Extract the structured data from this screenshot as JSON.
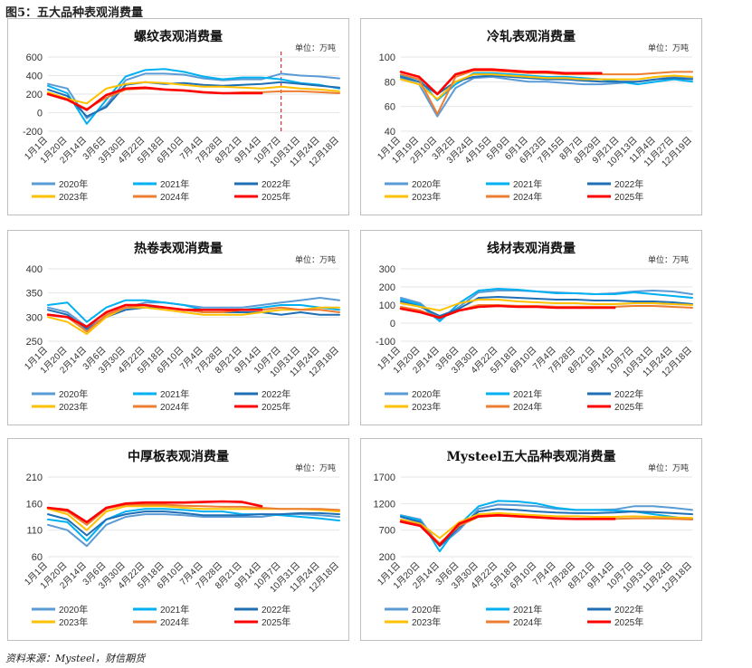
{
  "figure": {
    "title": "图5：五大品种表观消费量",
    "source": "资料来源：Mysteel，财信期货"
  },
  "legend_years": [
    "2020年",
    "2021年",
    "2022年",
    "2023年",
    "2024年",
    "2025年"
  ],
  "series_colors": {
    "2020年": "#5b9bd5",
    "2021年": "#00b0f0",
    "2022年": "#1f6fb5",
    "2023年": "#ffc000",
    "2024年": "#ed7d31",
    "2025年": "#ff0000"
  },
  "chart_data": [
    {
      "id": "rebar",
      "type": "line",
      "title": "螺纹表观消费量",
      "unit": "单位：万吨",
      "ylim": [
        -200,
        600
      ],
      "yticks": [
        "-200",
        "0",
        "200",
        "400",
        "600"
      ],
      "categories": [
        "1月1日",
        "1月20日",
        "2月14日",
        "3月6日",
        "3月30日",
        "4月22日",
        "5月18日",
        "6月10日",
        "7月4日",
        "7月28日",
        "8月21日",
        "9月14日",
        "10月7日",
        "10月31日",
        "11月24日",
        "12月18日"
      ],
      "marker_at": "10月7日",
      "series": [
        {
          "name": "2020年",
          "values": [
            310,
            260,
            -60,
            80,
            350,
            420,
            420,
            410,
            370,
            350,
            360,
            360,
            420,
            400,
            390,
            370
          ]
        },
        {
          "name": "2021年",
          "values": [
            290,
            210,
            -120,
            140,
            390,
            460,
            470,
            440,
            390,
            360,
            380,
            380,
            360,
            320,
            300,
            260
          ]
        },
        {
          "name": "2022年",
          "values": [
            250,
            180,
            -40,
            60,
            300,
            330,
            310,
            320,
            300,
            290,
            300,
            310,
            330,
            310,
            290,
            270
          ]
        },
        {
          "name": "2023年",
          "values": [
            220,
            150,
            100,
            260,
            310,
            330,
            320,
            300,
            280,
            280,
            270,
            260,
            280,
            260,
            250,
            230
          ]
        },
        {
          "name": "2024年",
          "values": [
            200,
            140,
            40,
            160,
            250,
            260,
            250,
            240,
            220,
            210,
            220,
            220,
            230,
            230,
            220,
            210
          ]
        },
        {
          "name": "2025年",
          "values": [
            200,
            140,
            30,
            190,
            260,
            270,
            250,
            240,
            220,
            210,
            210,
            210,
            null,
            null,
            null,
            null
          ]
        }
      ]
    },
    {
      "id": "wire",
      "type": "line",
      "title": "线材表观消费量",
      "unit": "单位：万吨",
      "ylim": [
        -100,
        300
      ],
      "yticks": [
        "-100",
        "0",
        "100",
        "200",
        "300"
      ],
      "categories": [
        "1月1日",
        "1月20日",
        "2月14日",
        "3月6日",
        "3月30日",
        "4月22日",
        "5月18日",
        "6月10日",
        "7月4日",
        "7月28日",
        "8月21日",
        "9月14日",
        "10月7日",
        "10月31日",
        "11月24日",
        "12月18日"
      ],
      "series": [
        {
          "name": "2020年",
          "values": [
            140,
            110,
            20,
            90,
            170,
            180,
            180,
            175,
            170,
            165,
            160,
            165,
            175,
            180,
            175,
            160
          ]
        },
        {
          "name": "2021年",
          "values": [
            130,
            100,
            10,
            110,
            180,
            190,
            185,
            175,
            165,
            165,
            160,
            160,
            170,
            160,
            150,
            140
          ]
        },
        {
          "name": "2022年",
          "values": [
            120,
            90,
            40,
            80,
            140,
            145,
            140,
            135,
            130,
            130,
            125,
            125,
            120,
            120,
            115,
            105
          ]
        },
        {
          "name": "2023年",
          "values": [
            110,
            90,
            70,
            110,
            130,
            130,
            120,
            115,
            110,
            110,
            105,
            105,
            110,
            110,
            105,
            100
          ]
        },
        {
          "name": "2024年",
          "values": [
            90,
            70,
            30,
            70,
            100,
            100,
            95,
            95,
            90,
            90,
            90,
            90,
            95,
            95,
            90,
            85
          ]
        },
        {
          "name": "2025年",
          "values": [
            80,
            60,
            30,
            70,
            90,
            95,
            90,
            90,
            85,
            85,
            85,
            85,
            null,
            null,
            null,
            null
          ]
        }
      ]
    },
    {
      "id": "coldroll",
      "type": "line",
      "title": "冷轧表观消费量",
      "unit": "单位：万吨",
      "ylim": [
        40,
        100
      ],
      "yticks": [
        "40",
        "60",
        "80",
        "100"
      ],
      "categories": [
        "1月1日",
        "1月19日",
        "2月10日",
        "3月2日",
        "3月24日",
        "4月15日",
        "5月9日",
        "6月1日",
        "6月23日",
        "7月15日",
        "8月7日",
        "8月29日",
        "9月21日",
        "10月13日",
        "11月4日",
        "11月27日",
        "12月19日"
      ],
      "series": [
        {
          "name": "2020年",
          "values": [
            83,
            78,
            52,
            75,
            83,
            84,
            82,
            80,
            80,
            79,
            78,
            78,
            79,
            80,
            82,
            84,
            83
          ]
        },
        {
          "name": "2021年",
          "values": [
            85,
            82,
            65,
            78,
            87,
            87,
            86,
            85,
            84,
            84,
            83,
            82,
            80,
            78,
            80,
            82,
            80
          ]
        },
        {
          "name": "2022年",
          "values": [
            84,
            80,
            70,
            80,
            84,
            85,
            84,
            83,
            82,
            82,
            81,
            80,
            80,
            80,
            82,
            83,
            82
          ]
        },
        {
          "name": "2023年",
          "values": [
            82,
            78,
            66,
            80,
            86,
            86,
            85,
            84,
            83,
            83,
            82,
            82,
            82,
            82,
            84,
            85,
            84
          ]
        },
        {
          "name": "2024年",
          "values": [
            86,
            82,
            54,
            84,
            89,
            89,
            88,
            87,
            87,
            86,
            86,
            86,
            86,
            86,
            87,
            88,
            88
          ]
        },
        {
          "name": "2025年",
          "values": [
            88,
            84,
            70,
            86,
            90,
            90,
            89,
            88,
            88,
            87,
            87,
            87,
            null,
            null,
            null,
            null,
            null
          ]
        }
      ]
    },
    {
      "id": "hotroll",
      "type": "line",
      "title": "热卷表观消费量",
      "unit": "单位：万吨",
      "ylim": [
        250,
        400
      ],
      "yticks": [
        "250",
        "300",
        "350",
        "400"
      ],
      "categories": [
        "1月1日",
        "1月20日",
        "2月14日",
        "3月6日",
        "3月30日",
        "4月22日",
        "5月18日",
        "6月10日",
        "7月4日",
        "7月28日",
        "8月21日",
        "9月14日",
        "10月7日",
        "10月31日",
        "11月24日",
        "12月18日"
      ],
      "series": [
        {
          "name": "2020年",
          "values": [
            320,
            310,
            280,
            300,
            320,
            330,
            330,
            325,
            320,
            320,
            320,
            325,
            330,
            335,
            340,
            335
          ]
        },
        {
          "name": "2021年",
          "values": [
            325,
            330,
            290,
            320,
            335,
            335,
            330,
            325,
            315,
            315,
            315,
            320,
            325,
            325,
            320,
            315
          ]
        },
        {
          "name": "2022年",
          "values": [
            315,
            305,
            275,
            300,
            315,
            320,
            320,
            315,
            310,
            310,
            310,
            310,
            305,
            310,
            305,
            305
          ]
        },
        {
          "name": "2023年",
          "values": [
            300,
            290,
            265,
            300,
            320,
            320,
            315,
            310,
            305,
            305,
            305,
            310,
            315,
            315,
            320,
            320
          ]
        },
        {
          "name": "2024年",
          "values": [
            305,
            300,
            270,
            305,
            320,
            325,
            320,
            315,
            310,
            310,
            315,
            315,
            320,
            315,
            315,
            310
          ]
        },
        {
          "name": "2025年",
          "values": [
            305,
            300,
            280,
            310,
            325,
            325,
            320,
            315,
            315,
            315,
            315,
            315,
            null,
            null,
            null,
            null
          ]
        }
      ]
    },
    {
      "id": "plate",
      "type": "line",
      "title": "中厚板表观消费量",
      "unit": "单位：万吨",
      "ylim": [
        60,
        210
      ],
      "yticks": [
        "60",
        "110",
        "160",
        "210"
      ],
      "categories": [
        "1月1日",
        "1月20日",
        "2月14日",
        "3月6日",
        "3月30日",
        "4月22日",
        "5月18日",
        "6月10日",
        "7月4日",
        "7月28日",
        "8月21日",
        "9月14日",
        "10月7日",
        "10月31日",
        "11月24日",
        "12月18日"
      ],
      "series": [
        {
          "name": "2020年",
          "values": [
            120,
            110,
            80,
            120,
            135,
            140,
            140,
            138,
            135,
            135,
            135,
            135,
            140,
            140,
            138,
            135
          ]
        },
        {
          "name": "2021年",
          "values": [
            130,
            125,
            90,
            130,
            145,
            150,
            150,
            148,
            145,
            145,
            140,
            140,
            138,
            135,
            132,
            128
          ]
        },
        {
          "name": "2022年",
          "values": [
            140,
            130,
            100,
            130,
            140,
            145,
            145,
            142,
            138,
            138,
            138,
            140,
            140,
            142,
            142,
            140
          ]
        },
        {
          "name": "2023年",
          "values": [
            150,
            140,
            110,
            145,
            155,
            155,
            155,
            152,
            150,
            150,
            150,
            150,
            150,
            150,
            148,
            145
          ]
        },
        {
          "name": "2024年",
          "values": [
            152,
            145,
            120,
            150,
            158,
            158,
            158,
            156,
            155,
            154,
            154,
            152,
            150,
            150,
            150,
            148
          ]
        },
        {
          "name": "2025年",
          "values": [
            152,
            148,
            125,
            152,
            160,
            162,
            162,
            162,
            163,
            164,
            163,
            155,
            null,
            null,
            null,
            null
          ]
        }
      ]
    },
    {
      "id": "total",
      "type": "line",
      "title": "Mysteel五大品种表观消费量",
      "unit": "单位：万吨",
      "ylim": [
        200,
        1700
      ],
      "yticks": [
        "200",
        "700",
        "1200",
        "1700"
      ],
      "categories": [
        "1月1日",
        "1月20日",
        "2月14日",
        "3月6日",
        "3月30日",
        "4月22日",
        "5月18日",
        "6月10日",
        "7月4日",
        "7月28日",
        "8月21日",
        "9月14日",
        "10月7日",
        "10月31日",
        "11月24日",
        "12月18日"
      ],
      "series": [
        {
          "name": "2020年",
          "values": [
            980,
            900,
            400,
            700,
            1100,
            1180,
            1170,
            1150,
            1100,
            1080,
            1080,
            1090,
            1150,
            1150,
            1120,
            1080
          ]
        },
        {
          "name": "2021年",
          "values": [
            970,
            880,
            300,
            800,
            1150,
            1250,
            1240,
            1200,
            1120,
            1080,
            1080,
            1070,
            1050,
            1000,
            950,
            900
          ]
        },
        {
          "name": "2022年",
          "values": [
            950,
            850,
            400,
            750,
            1050,
            1100,
            1080,
            1050,
            1030,
            1020,
            1020,
            1030,
            1050,
            1040,
            1020,
            1000
          ]
        },
        {
          "name": "2023年",
          "values": [
            900,
            820,
            550,
            850,
            1000,
            1020,
            1000,
            980,
            960,
            960,
            950,
            950,
            960,
            950,
            940,
            930
          ]
        },
        {
          "name": "2024年",
          "values": [
            880,
            800,
            450,
            780,
            950,
            970,
            960,
            940,
            920,
            910,
            910,
            910,
            920,
            920,
            910,
            900
          ]
        },
        {
          "name": "2025年",
          "values": [
            860,
            780,
            420,
            820,
            960,
            980,
            960,
            940,
            920,
            910,
            910,
            910,
            null,
            null,
            null,
            null
          ]
        }
      ]
    }
  ]
}
